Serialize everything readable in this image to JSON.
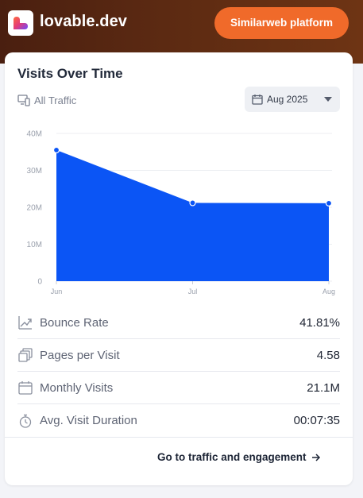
{
  "header": {
    "site_name": "lovable.dev",
    "platform_button": "Similarweb platform"
  },
  "card": {
    "title": "Visits Over Time",
    "traffic_filter": "All Traffic",
    "date_select": "Aug 2025"
  },
  "chart_data": {
    "type": "area",
    "categories": [
      "Jun",
      "Jul",
      "Aug"
    ],
    "values": [
      35500000,
      21200000,
      21100000
    ],
    "ylim": [
      0,
      40000000
    ],
    "ytick_labels": [
      "0",
      "10M",
      "20M",
      "30M",
      "40M"
    ],
    "ytick_values": [
      0,
      10000000,
      20000000,
      30000000,
      40000000
    ],
    "grid": true,
    "color": "#0b55f5"
  },
  "metrics": [
    {
      "icon": "trend-down-icon",
      "label": "Bounce Rate",
      "value": "41.81%"
    },
    {
      "icon": "pages-icon",
      "label": "Pages per Visit",
      "value": "4.58"
    },
    {
      "icon": "calendar-icon",
      "label": "Monthly Visits",
      "value": "21.1M"
    },
    {
      "icon": "stopwatch-icon",
      "label": "Avg. Visit Duration",
      "value": "00:07:35"
    }
  ],
  "footer": {
    "link_label": "Go to traffic and engagement"
  },
  "colors": {
    "accent": "#f06a2a",
    "chart_fill": "#0b55f5",
    "header_bg": "#5c2a12"
  }
}
